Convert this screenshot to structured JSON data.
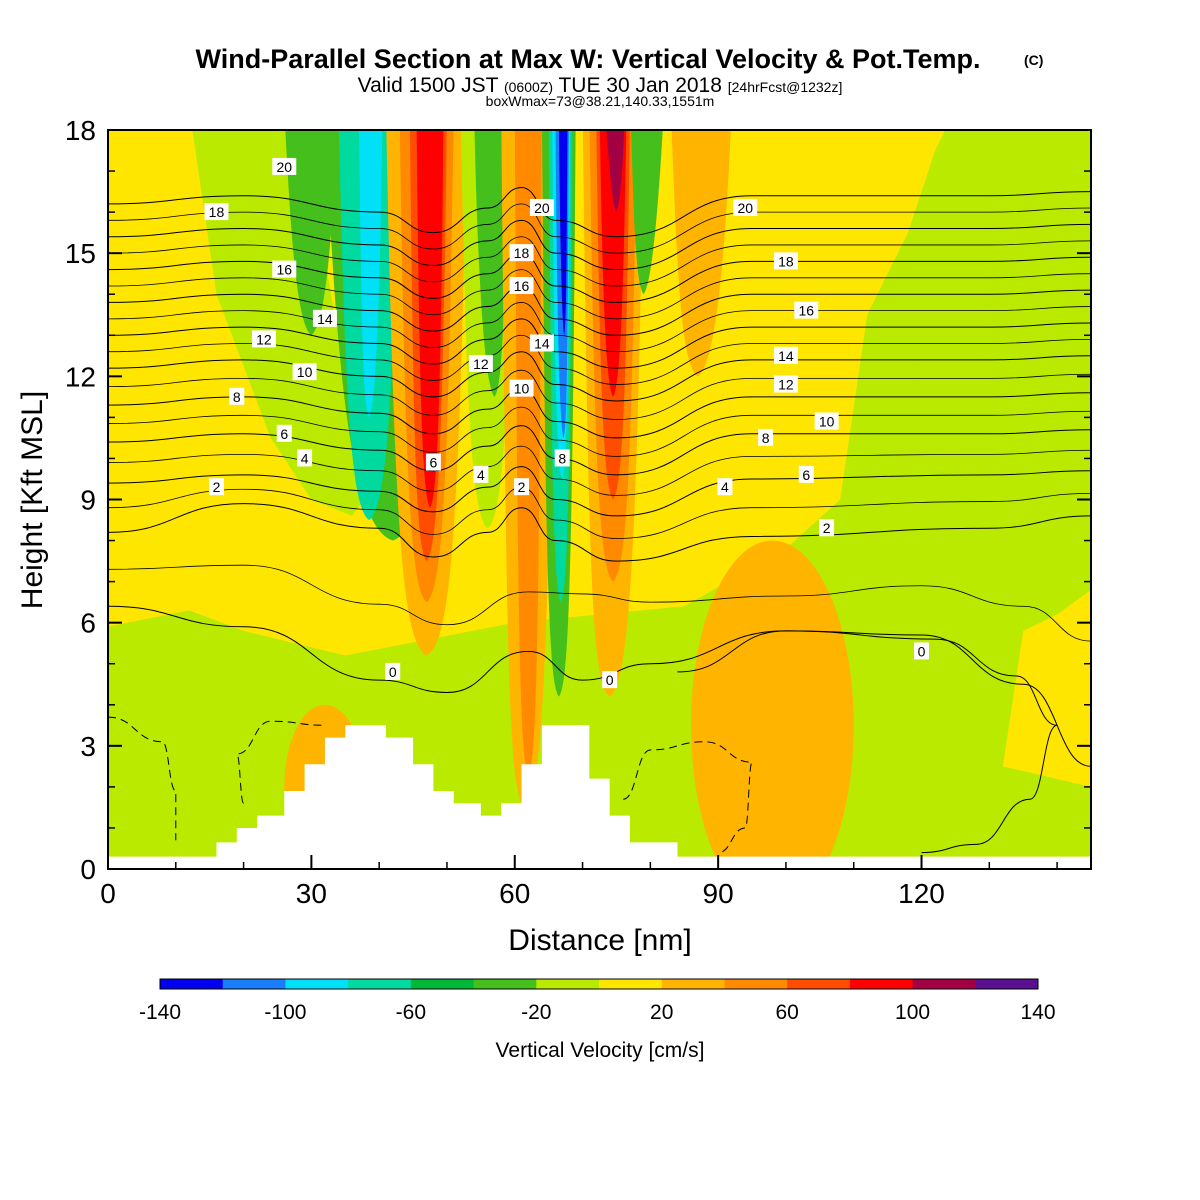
{
  "title": {
    "main": "Wind-Parallel Section at Max W: Vertical Velocity & Pot.Temp.",
    "copyright": "(C)",
    "valid_prefix": "Valid 1500 JST",
    "valid_utc": "(0600Z)",
    "valid_date": "TUE 30 Jan 2018",
    "forecast": "[24hrFcst@1232z]",
    "box": "boxWmax=73@38.21,140.33,1551m"
  },
  "chart_data": {
    "type": "heatmap",
    "xlabel": "Distance [nm]",
    "ylabel": "Height [Kft MSL]",
    "xlim": [
      0,
      145
    ],
    "ylim": [
      0,
      18
    ],
    "xticks": [
      0,
      30,
      60,
      90,
      120
    ],
    "yticks": [
      0,
      3,
      6,
      9,
      12,
      15,
      18
    ],
    "colorbar": {
      "label": "Vertical Velocity [cm/s]",
      "levels": [
        -140,
        -120,
        -100,
        -80,
        -60,
        -40,
        -20,
        0,
        20,
        40,
        60,
        80,
        100,
        120,
        140
      ],
      "tick_labels": [
        -140,
        -100,
        -60,
        -20,
        20,
        60,
        100,
        140
      ],
      "colors": [
        "#0000ee",
        "#1a7dfa",
        "#00e1f8",
        "#00d9a0",
        "#00b838",
        "#44bf1b",
        "#b9ea00",
        "#ffe600",
        "#ffb400",
        "#ff8a00",
        "#ff4d00",
        "#ff0000",
        "#a30043",
        "#5a1191"
      ]
    },
    "terrain_profile": [
      [
        0,
        0.3
      ],
      [
        16,
        0.3
      ],
      [
        16,
        0.65
      ],
      [
        19,
        0.65
      ],
      [
        19,
        1.0
      ],
      [
        22,
        1.0
      ],
      [
        22,
        1.3
      ],
      [
        26,
        1.3
      ],
      [
        26,
        1.9
      ],
      [
        29,
        1.9
      ],
      [
        29,
        2.55
      ],
      [
        32,
        2.55
      ],
      [
        32,
        3.2
      ],
      [
        35,
        3.2
      ],
      [
        35,
        3.5
      ],
      [
        41,
        3.5
      ],
      [
        41,
        3.2
      ],
      [
        45,
        3.2
      ],
      [
        45,
        2.55
      ],
      [
        48,
        2.55
      ],
      [
        48,
        1.9
      ],
      [
        51,
        1.9
      ],
      [
        51,
        1.6
      ],
      [
        55,
        1.6
      ],
      [
        55,
        1.3
      ],
      [
        58,
        1.3
      ],
      [
        58,
        1.6
      ],
      [
        61,
        1.6
      ],
      [
        61,
        2.55
      ],
      [
        64,
        2.55
      ],
      [
        64,
        3.5
      ],
      [
        71,
        3.5
      ],
      [
        71,
        2.2
      ],
      [
        74,
        2.2
      ],
      [
        74,
        1.3
      ],
      [
        77,
        1.3
      ],
      [
        77,
        0.65
      ],
      [
        84,
        0.65
      ],
      [
        84,
        0.3
      ],
      [
        145,
        0.3
      ]
    ],
    "w_bands": [
      {
        "x": [
          32,
          42,
          50
        ],
        "w": -30,
        "base": 8.0
      },
      {
        "x": [
          34,
          38.5,
          43
        ],
        "w": -70,
        "base": 8.5
      },
      {
        "x": [
          37,
          38.5,
          40.5
        ],
        "w": -90,
        "base": 11.0
      },
      {
        "x": [
          41,
          47,
          53
        ],
        "w": 30,
        "base": 5.2
      },
      {
        "x": [
          43,
          47,
          51
        ],
        "w": 50,
        "base": 6.5
      },
      {
        "x": [
          44.5,
          47,
          50
        ],
        "w": 75,
        "base": 7.5
      },
      {
        "x": [
          45.5,
          47.5,
          49.5
        ],
        "w": 95,
        "base": 8.8
      },
      {
        "x": [
          52,
          56,
          60
        ],
        "w": -20,
        "base": 8.3
      },
      {
        "x": [
          54,
          57,
          59
        ],
        "w": -40,
        "base": 11.5
      },
      {
        "x": [
          58,
          61.5,
          66
        ],
        "w": 30,
        "base": 1.5
      },
      {
        "x": [
          60,
          62,
          64
        ],
        "w": 55,
        "base": 2.3
      },
      {
        "x": [
          64,
          66.5,
          69
        ],
        "w": -40,
        "base": 4.2
      },
      {
        "x": [
          65,
          66.8,
          68.5
        ],
        "w": -75,
        "base": 6.5
      },
      {
        "x": [
          65.5,
          67,
          68.2
        ],
        "w": -95,
        "base": 9.5
      },
      {
        "x": [
          66,
          67.2,
          68
        ],
        "w": -115,
        "base": 10.5
      },
      {
        "x": [
          66.5,
          67.3,
          67.8
        ],
        "w": -135,
        "base": 13.0
      },
      {
        "x": [
          70,
          74,
          79
        ],
        "w": 30,
        "base": 4.2
      },
      {
        "x": [
          71,
          74.5,
          78
        ],
        "w": 55,
        "base": 7.0
      },
      {
        "x": [
          72,
          74.5,
          77
        ],
        "w": 75,
        "base": 9.0
      },
      {
        "x": [
          72.5,
          74.5,
          76.5
        ],
        "w": 95,
        "base": 11.5
      },
      {
        "x": [
          73,
          75,
          76.5
        ],
        "w": 115,
        "base": 16.0
      },
      {
        "x": [
          77,
          79,
          82
        ],
        "w": -30,
        "base": 14.0
      },
      {
        "x": [
          83,
          87,
          92
        ],
        "w": 30,
        "base": 12.0
      },
      {
        "x": [
          26,
          30,
          34
        ],
        "w": -30,
        "base": 13.0
      }
    ],
    "w_blobs": [
      {
        "cx": 32,
        "cy": 2.0,
        "rx": 6,
        "ry": 2.0,
        "w": 30
      },
      {
        "cx": 98,
        "cy": 3.5,
        "rx": 12,
        "ry": 4.5,
        "w": 30
      },
      {
        "cx": 124,
        "cy": 10.5,
        "rx": 5,
        "ry": 3.5,
        "w": -15
      }
    ],
    "theta_contours": [
      {
        "label": "0",
        "points": [
          [
            0,
            6.4
          ],
          [
            20,
            5.9
          ],
          [
            40,
            4.6
          ],
          [
            50,
            4.3
          ],
          [
            62,
            5.3
          ],
          [
            70,
            4.6
          ],
          [
            80,
            5.0
          ],
          [
            100,
            5.8
          ],
          [
            120,
            5.7
          ],
          [
            135,
            4.5
          ],
          [
            145,
            2.5
          ]
        ]
      },
      {
        "label": "2",
        "points": [
          [
            0,
            8.2
          ],
          [
            20,
            8.9
          ],
          [
            40,
            8.3
          ],
          [
            48,
            7.6
          ],
          [
            56,
            8.2
          ],
          [
            61,
            8.8
          ],
          [
            66,
            8.0
          ],
          [
            75,
            7.5
          ],
          [
            95,
            8.1
          ],
          [
            130,
            8.3
          ],
          [
            145,
            8.6
          ]
        ]
      },
      {
        "label": "4",
        "points": [
          [
            0,
            9.4
          ],
          [
            20,
            9.6
          ],
          [
            40,
            9.2
          ],
          [
            48,
            8.7
          ],
          [
            56,
            9.3
          ],
          [
            61,
            9.8
          ],
          [
            66,
            9.0
          ],
          [
            75,
            8.6
          ],
          [
            95,
            9.5
          ],
          [
            130,
            9.6
          ],
          [
            145,
            9.7
          ]
        ]
      },
      {
        "label": "6",
        "points": [
          [
            0,
            10.4
          ],
          [
            20,
            10.6
          ],
          [
            40,
            10.2
          ],
          [
            48,
            9.7
          ],
          [
            56,
            10.3
          ],
          [
            61,
            10.8
          ],
          [
            66,
            10.0
          ],
          [
            75,
            9.6
          ],
          [
            95,
            10.6
          ],
          [
            130,
            10.6
          ],
          [
            145,
            10.7
          ]
        ]
      },
      {
        "label": "8",
        "points": [
          [
            0,
            11.3
          ],
          [
            20,
            11.5
          ],
          [
            40,
            11.1
          ],
          [
            48,
            10.6
          ],
          [
            56,
            11.2
          ],
          [
            61,
            11.7
          ],
          [
            66,
            10.9
          ],
          [
            75,
            10.5
          ],
          [
            95,
            11.5
          ],
          [
            130,
            11.5
          ],
          [
            145,
            11.6
          ]
        ]
      },
      {
        "label": "10",
        "points": [
          [
            0,
            12.2
          ],
          [
            20,
            12.4
          ],
          [
            40,
            12.0
          ],
          [
            48,
            11.5
          ],
          [
            56,
            12.1
          ],
          [
            61,
            12.6
          ],
          [
            66,
            11.8
          ],
          [
            75,
            11.4
          ],
          [
            95,
            12.4
          ],
          [
            130,
            12.4
          ],
          [
            145,
            12.5
          ]
        ]
      },
      {
        "label": "12",
        "points": [
          [
            0,
            13.0
          ],
          [
            20,
            13.2
          ],
          [
            40,
            12.8
          ],
          [
            48,
            12.3
          ],
          [
            56,
            12.9
          ],
          [
            61,
            13.4
          ],
          [
            66,
            12.6
          ],
          [
            75,
            12.2
          ],
          [
            95,
            13.2
          ],
          [
            130,
            13.2
          ],
          [
            145,
            13.3
          ]
        ]
      },
      {
        "label": "14",
        "points": [
          [
            0,
            13.8
          ],
          [
            20,
            14.0
          ],
          [
            40,
            13.6
          ],
          [
            48,
            13.1
          ],
          [
            56,
            13.7
          ],
          [
            61,
            14.2
          ],
          [
            66,
            13.4
          ],
          [
            75,
            13.0
          ],
          [
            95,
            14.0
          ],
          [
            130,
            14.0
          ],
          [
            145,
            14.1
          ]
        ]
      },
      {
        "label": "16",
        "points": [
          [
            0,
            14.6
          ],
          [
            20,
            14.8
          ],
          [
            40,
            14.4
          ],
          [
            48,
            13.9
          ],
          [
            56,
            14.5
          ],
          [
            61,
            15.0
          ],
          [
            66,
            14.2
          ],
          [
            75,
            13.8
          ],
          [
            95,
            14.8
          ],
          [
            130,
            14.8
          ],
          [
            145,
            14.9
          ]
        ]
      },
      {
        "label": "18",
        "points": [
          [
            0,
            15.4
          ],
          [
            20,
            15.6
          ],
          [
            40,
            15.2
          ],
          [
            48,
            14.7
          ],
          [
            56,
            15.3
          ],
          [
            61,
            15.8
          ],
          [
            66,
            15.0
          ],
          [
            75,
            14.6
          ],
          [
            95,
            15.6
          ],
          [
            130,
            15.6
          ],
          [
            145,
            15.7
          ]
        ]
      },
      {
        "label": "20",
        "points": [
          [
            0,
            16.2
          ],
          [
            20,
            16.4
          ],
          [
            40,
            16.0
          ],
          [
            48,
            15.5
          ],
          [
            56,
            16.1
          ],
          [
            61,
            16.6
          ],
          [
            66,
            15.8
          ],
          [
            75,
            15.4
          ],
          [
            95,
            16.4
          ],
          [
            130,
            16.4
          ],
          [
            145,
            16.5
          ]
        ]
      }
    ],
    "contour_labels": [
      {
        "text": "20",
        "x": 26,
        "y": 17.1
      },
      {
        "text": "18",
        "x": 16,
        "y": 16.0
      },
      {
        "text": "16",
        "x": 26,
        "y": 14.6
      },
      {
        "text": "14",
        "x": 32,
        "y": 13.4
      },
      {
        "text": "12",
        "x": 23,
        "y": 12.9
      },
      {
        "text": "10",
        "x": 29,
        "y": 12.1
      },
      {
        "text": "8",
        "x": 19,
        "y": 11.5
      },
      {
        "text": "6",
        "x": 26,
        "y": 10.6
      },
      {
        "text": "4",
        "x": 29,
        "y": 10.0
      },
      {
        "text": "2",
        "x": 16,
        "y": 9.3
      },
      {
        "text": "6",
        "x": 48,
        "y": 9.9
      },
      {
        "text": "4",
        "x": 55,
        "y": 9.6
      },
      {
        "text": "2",
        "x": 61,
        "y": 9.3
      },
      {
        "text": "12",
        "x": 55,
        "y": 12.3
      },
      {
        "text": "10",
        "x": 61,
        "y": 11.7
      },
      {
        "text": "20",
        "x": 64,
        "y": 16.1
      },
      {
        "text": "18",
        "x": 61,
        "y": 15.0
      },
      {
        "text": "16",
        "x": 61,
        "y": 14.2
      },
      {
        "text": "14",
        "x": 64,
        "y": 12.8
      },
      {
        "text": "8",
        "x": 67,
        "y": 10.0
      },
      {
        "text": "20",
        "x": 94,
        "y": 16.1
      },
      {
        "text": "18",
        "x": 100,
        "y": 14.8
      },
      {
        "text": "16",
        "x": 103,
        "y": 13.6
      },
      {
        "text": "14",
        "x": 100,
        "y": 12.5
      },
      {
        "text": "12",
        "x": 100,
        "y": 11.8
      },
      {
        "text": "10",
        "x": 106,
        "y": 10.9
      },
      {
        "text": "8",
        "x": 97,
        "y": 10.5
      },
      {
        "text": "6",
        "x": 103,
        "y": 9.6
      },
      {
        "text": "4",
        "x": 91,
        "y": 9.3
      },
      {
        "text": "2",
        "x": 106,
        "y": 8.3
      },
      {
        "text": "0",
        "x": 42,
        "y": 4.8
      },
      {
        "text": "0",
        "x": 74,
        "y": 4.6
      },
      {
        "text": "0",
        "x": 120,
        "y": 5.3
      }
    ],
    "dashed_contours": [
      [
        [
          0,
          3.7
        ],
        [
          8,
          3.1
        ],
        [
          10,
          1.9
        ],
        [
          10,
          0.7
        ]
      ],
      [
        [
          20,
          1.6
        ],
        [
          19,
          2.8
        ],
        [
          24,
          3.6
        ],
        [
          32,
          3.5
        ]
      ],
      [
        [
          76,
          1.7
        ],
        [
          80,
          2.9
        ],
        [
          88,
          3.1
        ],
        [
          95,
          2.6
        ],
        [
          94,
          1.0
        ],
        [
          90,
          0.4
        ]
      ]
    ],
    "closed_contour": [
      [
        84,
        4.8
      ],
      [
        100,
        5.8
      ],
      [
        122,
        5.6
      ],
      [
        134,
        4.7
      ],
      [
        140,
        3.5
      ],
      [
        136,
        1.7
      ],
      [
        128,
        0.6
      ],
      [
        120,
        0.4
      ]
    ]
  }
}
